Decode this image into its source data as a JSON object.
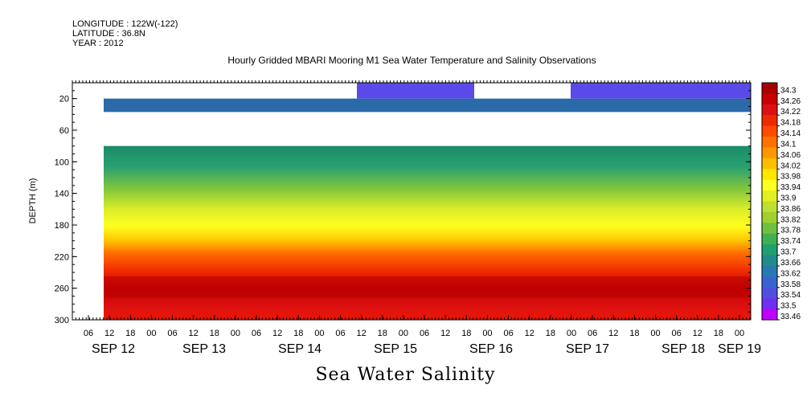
{
  "meta": {
    "longitude": "LONGITUDE : 122W(-122)",
    "latitude": "LATITUDE : 36.8N",
    "year": "YEAR : 2012"
  },
  "chart_data": {
    "type": "heatmap",
    "title": "Hourly Gridded MBARI Mooring M1 Sea Water Temperature and Salinity Observations",
    "xlabel": "Sea Water Salinity",
    "ylabel": "DEPTH (m)",
    "y_ticks": [
      20,
      60,
      100,
      140,
      180,
      220,
      260,
      300
    ],
    "ylim": [
      300,
      0
    ],
    "x_hour_ticks": [
      "06",
      "12",
      "18",
      "00",
      "06",
      "12",
      "18",
      "00",
      "06",
      "12",
      "18",
      "00",
      "06",
      "12",
      "18",
      "00",
      "06",
      "12",
      "18",
      "00",
      "06",
      "12",
      "18",
      "00",
      "06",
      "12",
      "18",
      "00",
      "06",
      "12",
      "18",
      "00"
    ],
    "x_day_labels": [
      "SEP 12",
      "SEP 13",
      "SEP 14",
      "SEP 15",
      "SEP 16",
      "SEP 17",
      "SEP 18",
      "SEP 19"
    ],
    "colorbar_levels": [
      "34.3",
      "34.26",
      "34.22",
      "34.18",
      "34.14",
      "34.1",
      "34.06",
      "34.02",
      "33.98",
      "33.94",
      "33.9",
      "33.86",
      "33.82",
      "33.78",
      "33.74",
      "33.7",
      "33.66",
      "33.62",
      "33.58",
      "33.54",
      "33.5",
      "33.46"
    ],
    "colorbar_colors": [
      "#a80000",
      "#c80000",
      "#dc1010",
      "#f02a00",
      "#ff4a00",
      "#ff7000",
      "#ff9600",
      "#ffbe00",
      "#ffe600",
      "#ffff20",
      "#e0f020",
      "#c0e030",
      "#a0d030",
      "#70c040",
      "#40b050",
      "#20a070",
      "#208c8c",
      "#2878b4",
      "#3864d0",
      "#5050e0",
      "#7030f0",
      "#c000ff"
    ],
    "depth_profile": [
      {
        "depth": 20,
        "salinity": 33.6
      },
      {
        "depth": 100,
        "salinity": 33.72
      },
      {
        "depth": 140,
        "salinity": 33.9
      },
      {
        "depth": 180,
        "salinity": 34.0
      },
      {
        "depth": 220,
        "salinity": 34.18
      },
      {
        "depth": 260,
        "salinity": 34.26
      },
      {
        "depth": 300,
        "salinity": 34.2
      }
    ]
  }
}
